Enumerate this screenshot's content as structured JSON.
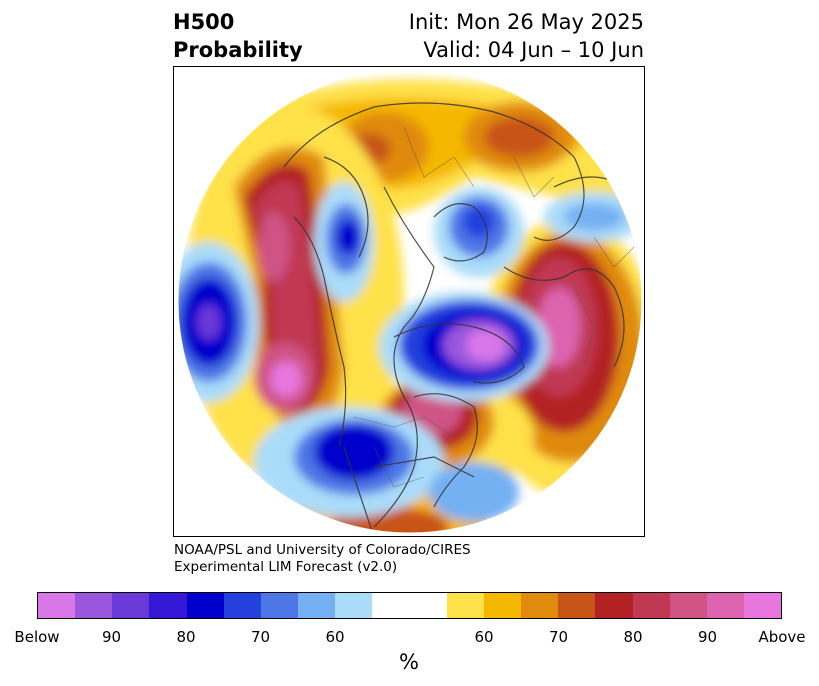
{
  "title": {
    "left_line1": "H500",
    "left_line2": "Probability",
    "right_line1": "Init: Mon 26 May 2025",
    "right_line2": "Valid: 04 Jun – 10 Jun"
  },
  "credit": {
    "line1": "NOAA/PSL and University of Colorado/CIRES",
    "line2": "Experimental LIM Forecast (v2.0)"
  },
  "colorbar": {
    "colors": [
      "#d977e8",
      "#9a57de",
      "#6b39d8",
      "#3518d6",
      "#0000cc",
      "#2440dd",
      "#4d76e6",
      "#74b0f2",
      "#aadcf9",
      "#ffffff",
      "#ffffff",
      "#ffe14a",
      "#f5b800",
      "#e08a0e",
      "#c85418",
      "#b22222",
      "#c03852",
      "#cf5384",
      "#dc63ae",
      "#e777de"
    ],
    "tick_labels": [
      "Below",
      "90",
      "80",
      "70",
      "60",
      "60",
      "70",
      "80",
      "90",
      "Above"
    ],
    "unit_label": "%"
  }
}
